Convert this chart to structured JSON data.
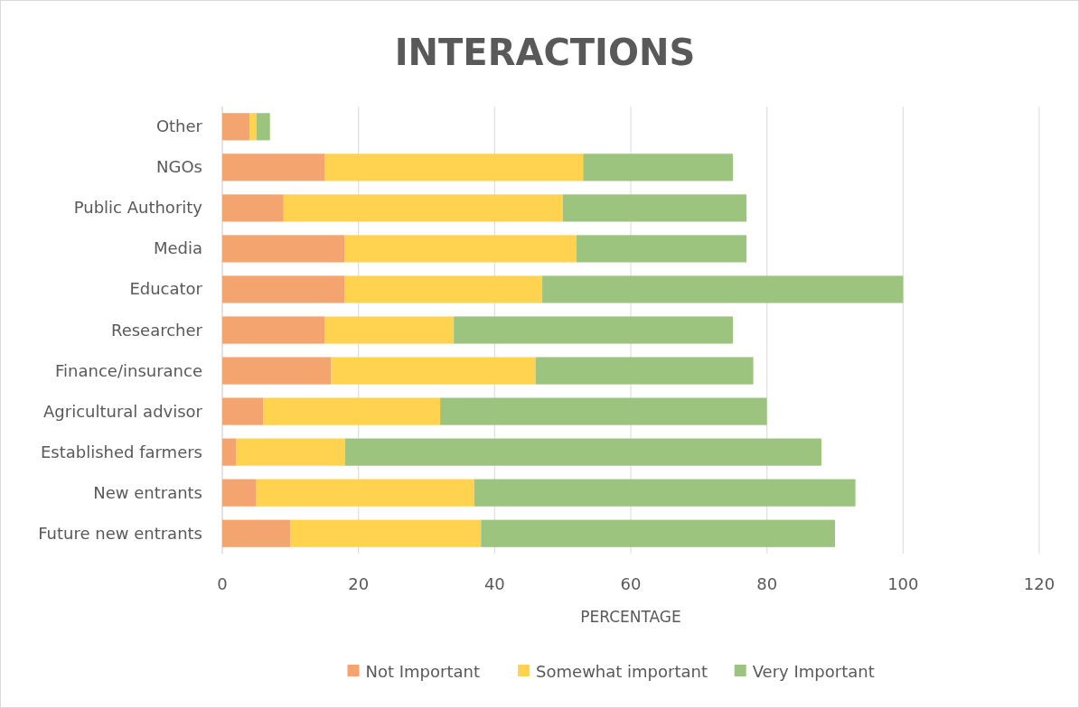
{
  "chart_data": {
    "type": "bar",
    "orientation": "horizontal",
    "stacked": true,
    "title": "INTERACTIONS",
    "xlabel": "PERCENTAGE",
    "categories": [
      "Other",
      "NGOs",
      "Public Authority",
      "Media",
      "Educator",
      "Researcher",
      "Finance/insurance",
      "Agricultural advisor",
      "Established farmers",
      "New entrants",
      "Future new entrants"
    ],
    "series": [
      {
        "name": "Not Important",
        "color": "#f4a46e",
        "values": [
          4,
          15,
          9,
          18,
          18,
          15,
          16,
          6,
          2,
          5,
          10
        ]
      },
      {
        "name": "Somewhat important",
        "color": "#ffd34f",
        "values": [
          1,
          38,
          41,
          34,
          29,
          19,
          30,
          26,
          16,
          32,
          28
        ]
      },
      {
        "name": "Very Important",
        "color": "#9dc47f",
        "values": [
          2,
          22,
          27,
          25,
          53,
          41,
          32,
          48,
          70,
          56,
          52
        ]
      }
    ],
    "xlim": [
      0,
      120
    ],
    "xticks": [
      0,
      20,
      40,
      60,
      80,
      100,
      120
    ],
    "grid": "x",
    "legend": "bottom"
  }
}
